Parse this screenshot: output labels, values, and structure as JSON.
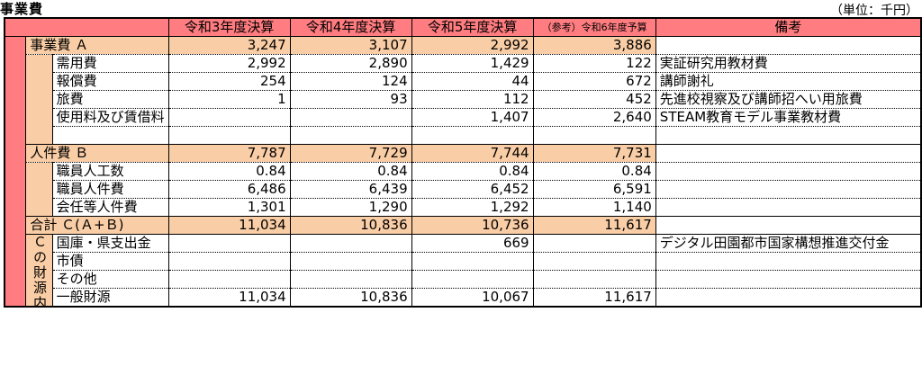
{
  "title": "事業費",
  "unit": "（単位：千円）",
  "headers": [
    "令和3年度決算",
    "令和4年度決算",
    "令和5年度決算",
    "（参考）令和6年度予算",
    "備考"
  ],
  "sections": {
    "jigyohi": {
      "label": "事業費 Ａ",
      "values": [
        "3,247",
        "3,107",
        "2,992",
        "3,886"
      ],
      "rows": [
        {
          "label": "需用費",
          "values": [
            "2,992",
            "2,890",
            "1,429",
            "122"
          ],
          "note": "実証研究用教材費"
        },
        {
          "label": "報償費",
          "values": [
            "254",
            "124",
            "44",
            "672"
          ],
          "note": "講師謝礼"
        },
        {
          "label": "旅費",
          "values": [
            "1",
            "93",
            "112",
            "452"
          ],
          "note": "先進校視察及び講師招へい用旅費"
        },
        {
          "label": "使用料及び賃借料",
          "values": [
            "",
            "",
            "1,407",
            "2,640"
          ],
          "note": "STEAM教育モデル事業教材費"
        }
      ]
    },
    "jinkenhi": {
      "label": "人件費 Ｂ",
      "values": [
        "7,787",
        "7,729",
        "7,744",
        "7,731"
      ],
      "rows": [
        {
          "label": "職員人工数",
          "values": [
            "0.84",
            "0.84",
            "0.84",
            "0.84"
          ],
          "note": ""
        },
        {
          "label": "職員人件費",
          "values": [
            "6,486",
            "6,439",
            "6,452",
            "6,591"
          ],
          "note": ""
        },
        {
          "label": "会任等人件費",
          "values": [
            "1,301",
            "1,290",
            "1,292",
            "1,140"
          ],
          "note": ""
        }
      ]
    },
    "total": {
      "label": "合計 Ｃ(Ａ+Ｂ)",
      "values": [
        "11,034",
        "10,836",
        "10,736",
        "11,617"
      ]
    },
    "zaigen": {
      "label": "Ｃの財源内訳",
      "rows": [
        {
          "label": "国庫・県支出金",
          "values": [
            "",
            "",
            "669",
            ""
          ],
          "note": "デジタル田園都市国家構想推進交付金"
        },
        {
          "label": "市債",
          "values": [
            "",
            "",
            "",
            ""
          ],
          "note": ""
        },
        {
          "label": "その他",
          "values": [
            "",
            "",
            "",
            ""
          ],
          "note": ""
        },
        {
          "label": "一般財源",
          "values": [
            "11,034",
            "10,836",
            "10,067",
            "11,617"
          ],
          "note": ""
        }
      ]
    }
  }
}
